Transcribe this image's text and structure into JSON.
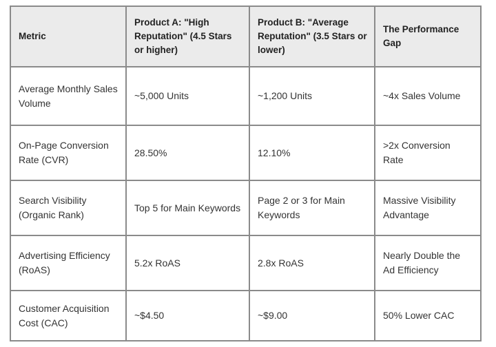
{
  "table": {
    "columns": [
      "Metric",
      "Product A: \"High Reputation\" (4.5 Stars or higher)",
      "Product B: \"Average Reputation\" (3.5 Stars or lower)",
      "The Performance Gap"
    ],
    "rows": [
      [
        "Average Monthly Sales Volume",
        "~5,000 Units",
        "~1,200 Units",
        "~4x Sales Volume"
      ],
      [
        "On-Page Conversion Rate (CVR)",
        "28.50%",
        "12.10%",
        ">2x Conversion Rate"
      ],
      [
        "Search Visibility (Organic Rank)",
        "Top 5 for Main Keywords",
        "Page 2 or 3 for Main Keywords",
        "Massive Visibility Advantage"
      ],
      [
        "Advertising Efficiency (RoAS)",
        "5.2x RoAS",
        "2.8x RoAS",
        "Nearly Double the Ad Efficiency"
      ],
      [
        "Customer Acquisition Cost (CAC)",
        "~$4.50",
        "~$9.00",
        "50% Lower CAC"
      ]
    ],
    "colors": {
      "header_bg": "#ebebeb",
      "body_bg": "#ffffff",
      "border_outer": "#4f4f4f",
      "border_inner": "#8a8a8a",
      "text": "#333333"
    }
  },
  "chart_data": {
    "type": "table",
    "title": "",
    "columns": [
      "Metric",
      "Product A: \"High Reputation\" (4.5 Stars or higher)",
      "Product B: \"Average Reputation\" (3.5 Stars or lower)",
      "The Performance Gap"
    ],
    "rows": [
      [
        "Average Monthly Sales Volume",
        "~5,000 Units",
        "~1,200 Units",
        "~4x Sales Volume"
      ],
      [
        "On-Page Conversion Rate (CVR)",
        "28.50%",
        "12.10%",
        ">2x Conversion Rate"
      ],
      [
        "Search Visibility (Organic Rank)",
        "Top 5 for Main Keywords",
        "Page 2 or 3 for Main Keywords",
        "Massive Visibility Advantage"
      ],
      [
        "Advertising Efficiency (RoAS)",
        "5.2x RoAS",
        "2.8x RoAS",
        "Nearly Double the Ad Efficiency"
      ],
      [
        "Customer Acquisition Cost (CAC)",
        "~$4.50",
        "~$9.00",
        "50% Lower CAC"
      ]
    ]
  }
}
